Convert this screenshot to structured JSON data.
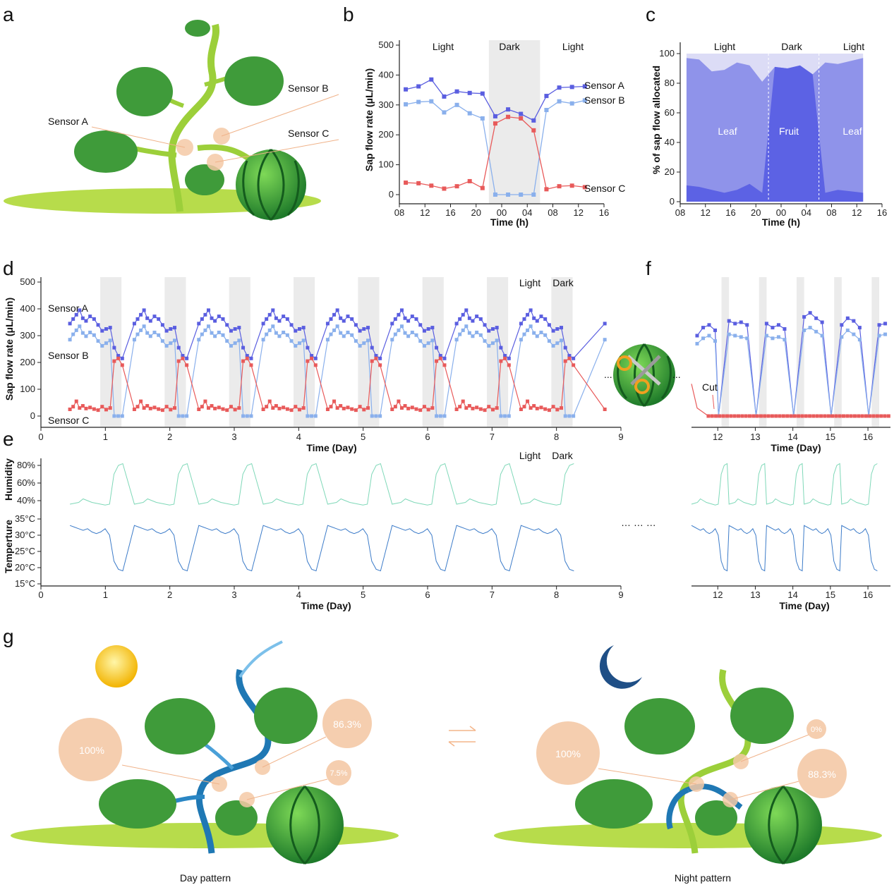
{
  "panels": {
    "a": "a",
    "b": "b",
    "c": "c",
    "d": "d",
    "e": "e",
    "f": "f",
    "g": "g"
  },
  "panel_a": {
    "sensor_a": "Sensor A",
    "sensor_b": "Sensor B",
    "sensor_c": "Sensor C"
  },
  "panel_g": {
    "day_caption": "Day pattern",
    "night_caption": "Night pattern",
    "day_values": [
      "100%",
      "86.3%",
      "7.5%"
    ],
    "night_values": [
      "100%",
      "0%",
      "88.3%"
    ]
  },
  "colors": {
    "sensorA": "#5a5ee0",
    "sensorB": "#8ab0ec",
    "sensorC": "#e85a5a",
    "humidity": "#7fd8b8",
    "temperature": "#3d7cc9",
    "leaf": "#8f93ea",
    "fruit": "#5c62e4",
    "bg": "#dcdcf6",
    "shade": "#e3e3e3"
  },
  "chart_data": [
    {
      "id": "b",
      "type": "line",
      "xlabel": "Time (h)",
      "ylabel": "Sap flow rate (μL/min)",
      "xticks": [
        "08",
        "12",
        "16",
        "20",
        "00",
        "04",
        "08",
        "12",
        "16"
      ],
      "ylim": [
        0,
        500
      ],
      "yticks": [
        "0",
        "100",
        "200",
        "300",
        "400",
        "500"
      ],
      "periods": [
        "Light",
        "Dark",
        "Light"
      ],
      "x_hours": [
        9,
        11,
        13,
        15,
        17,
        19,
        21,
        23,
        25,
        27,
        29,
        31,
        33,
        35,
        37
      ],
      "series": [
        {
          "name": "Sensor A",
          "values": [
            352,
            362,
            385,
            328,
            345,
            340,
            338,
            262,
            285,
            270,
            248,
            330,
            358,
            360,
            362
          ]
        },
        {
          "name": "Sensor B",
          "values": [
            302,
            310,
            312,
            275,
            300,
            272,
            255,
            0,
            0,
            0,
            0,
            283,
            312,
            305,
            315
          ]
        },
        {
          "name": "Sensor C",
          "values": [
            40,
            38,
            30,
            20,
            28,
            45,
            22,
            238,
            260,
            255,
            215,
            18,
            28,
            30,
            25
          ]
        }
      ]
    },
    {
      "id": "c",
      "type": "area",
      "xlabel": "Time (h)",
      "ylabel": "% of sap flow allocated",
      "xticks": [
        "08",
        "12",
        "16",
        "20",
        "00",
        "04",
        "08",
        "12",
        "16"
      ],
      "ylim": [
        0,
        100
      ],
      "yticks": [
        "0",
        "20",
        "40",
        "60",
        "80",
        "100"
      ],
      "periods": [
        "Light",
        "Dark",
        "Light"
      ],
      "region_labels": [
        "Leaf",
        "Fruit",
        "Leaf"
      ],
      "x_hours": [
        9,
        11,
        13,
        15,
        17,
        19,
        21,
        23,
        25,
        27,
        29,
        31,
        33,
        35,
        37
      ],
      "fruit_pct": [
        11,
        10,
        8,
        6,
        8,
        12,
        6,
        91,
        90,
        92,
        86,
        6,
        8,
        7,
        6
      ],
      "total_pct": [
        97,
        96,
        88,
        89,
        94,
        92,
        81,
        91,
        90,
        92,
        86,
        94,
        93,
        95,
        97
      ]
    },
    {
      "id": "d",
      "type": "line",
      "xlabel": "Time (Day)",
      "ylabel": "Sap flow rate (μL/min)",
      "xlim": [
        0,
        9
      ],
      "xticks": [
        "0",
        "1",
        "2",
        "3",
        "4",
        "5",
        "6",
        "7",
        "8",
        "9"
      ],
      "ylim": [
        0,
        500
      ],
      "yticks": [
        "0",
        "100",
        "200",
        "300",
        "400",
        "500"
      ],
      "legend": {
        "light": "Light",
        "dark": "Dark"
      },
      "series_labels": [
        "Sensor A",
        "Sensor B",
        "Sensor C"
      ],
      "dark_periods": [
        [
          0.92,
          1.25
        ],
        [
          1.92,
          2.25
        ],
        [
          2.92,
          3.25
        ],
        [
          3.92,
          4.25
        ],
        [
          4.92,
          5.25
        ],
        [
          5.92,
          6.25
        ],
        [
          6.92,
          7.25
        ],
        [
          7.92,
          8.25
        ]
      ],
      "day_profile": {
        "phase": [
          0.0,
          0.04,
          0.08,
          0.12,
          0.16,
          0.2,
          0.25,
          0.3,
          0.35,
          0.4,
          0.45,
          0.5,
          0.55,
          0.6,
          0.65
        ],
        "sensorA": [
          345,
          362,
          378,
          395,
          365,
          355,
          372,
          362,
          340,
          318,
          325,
          330,
          255,
          225,
          215
        ],
        "sensorB": [
          285,
          305,
          320,
          335,
          310,
          298,
          312,
          302,
          280,
          262,
          272,
          282,
          0,
          0,
          0
        ],
        "sensorC": [
          25,
          35,
          55,
          30,
          38,
          28,
          32,
          26,
          22,
          35,
          24,
          30,
          205,
          215,
          190
        ]
      }
    },
    {
      "id": "e",
      "type": "line",
      "xlabel": "Time (Day)",
      "y_labels": {
        "humidity": "Humidity",
        "temperature": "Temperture"
      },
      "humidity_ticks": [
        "80%",
        "60%",
        "40%"
      ],
      "temperature_ticks": [
        "35°C",
        "30°C",
        "25°C",
        "20°C",
        "15°C"
      ],
      "xticks": [
        "0",
        "1",
        "2",
        "3",
        "4",
        "5",
        "6",
        "7",
        "8",
        "9"
      ],
      "legend": {
        "light": "Light",
        "dark": "Dark"
      },
      "humidity_day_pct": [
        36,
        37,
        38,
        42,
        40,
        38,
        37,
        36,
        35,
        36,
        70,
        80,
        82
      ],
      "temperature_day_c": [
        33,
        32.5,
        32,
        31.5,
        32,
        31,
        30.5,
        31,
        32,
        30,
        22,
        19.5,
        19
      ]
    },
    {
      "id": "f",
      "type": "line",
      "xlabel": "Time (Day)",
      "xticks": [
        "12",
        "13",
        "14",
        "15",
        "16"
      ],
      "annotation": "Cut",
      "cycles": [
        {
          "sensorA": [
            300,
            330,
            340,
            320
          ],
          "sensorB": [
            270,
            290,
            300,
            280
          ]
        },
        {
          "sensorA": [
            355,
            345,
            350,
            340
          ],
          "sensorB": [
            305,
            300,
            295,
            290
          ]
        },
        {
          "sensorA": [
            345,
            330,
            340,
            325
          ],
          "sensorB": [
            300,
            290,
            295,
            285
          ]
        },
        {
          "sensorA": [
            370,
            385,
            365,
            350
          ],
          "sensorB": [
            320,
            330,
            315,
            300
          ]
        },
        {
          "sensorA": [
            340,
            365,
            355,
            330
          ],
          "sensorB": [
            295,
            320,
            305,
            285
          ]
        },
        {
          "sensorA": [
            340,
            345
          ],
          "sensorB": [
            300,
            305
          ]
        }
      ],
      "sensorC_value": 0
    }
  ],
  "ellipsis": [
    "...",
    "...",
    "…  …  …"
  ]
}
